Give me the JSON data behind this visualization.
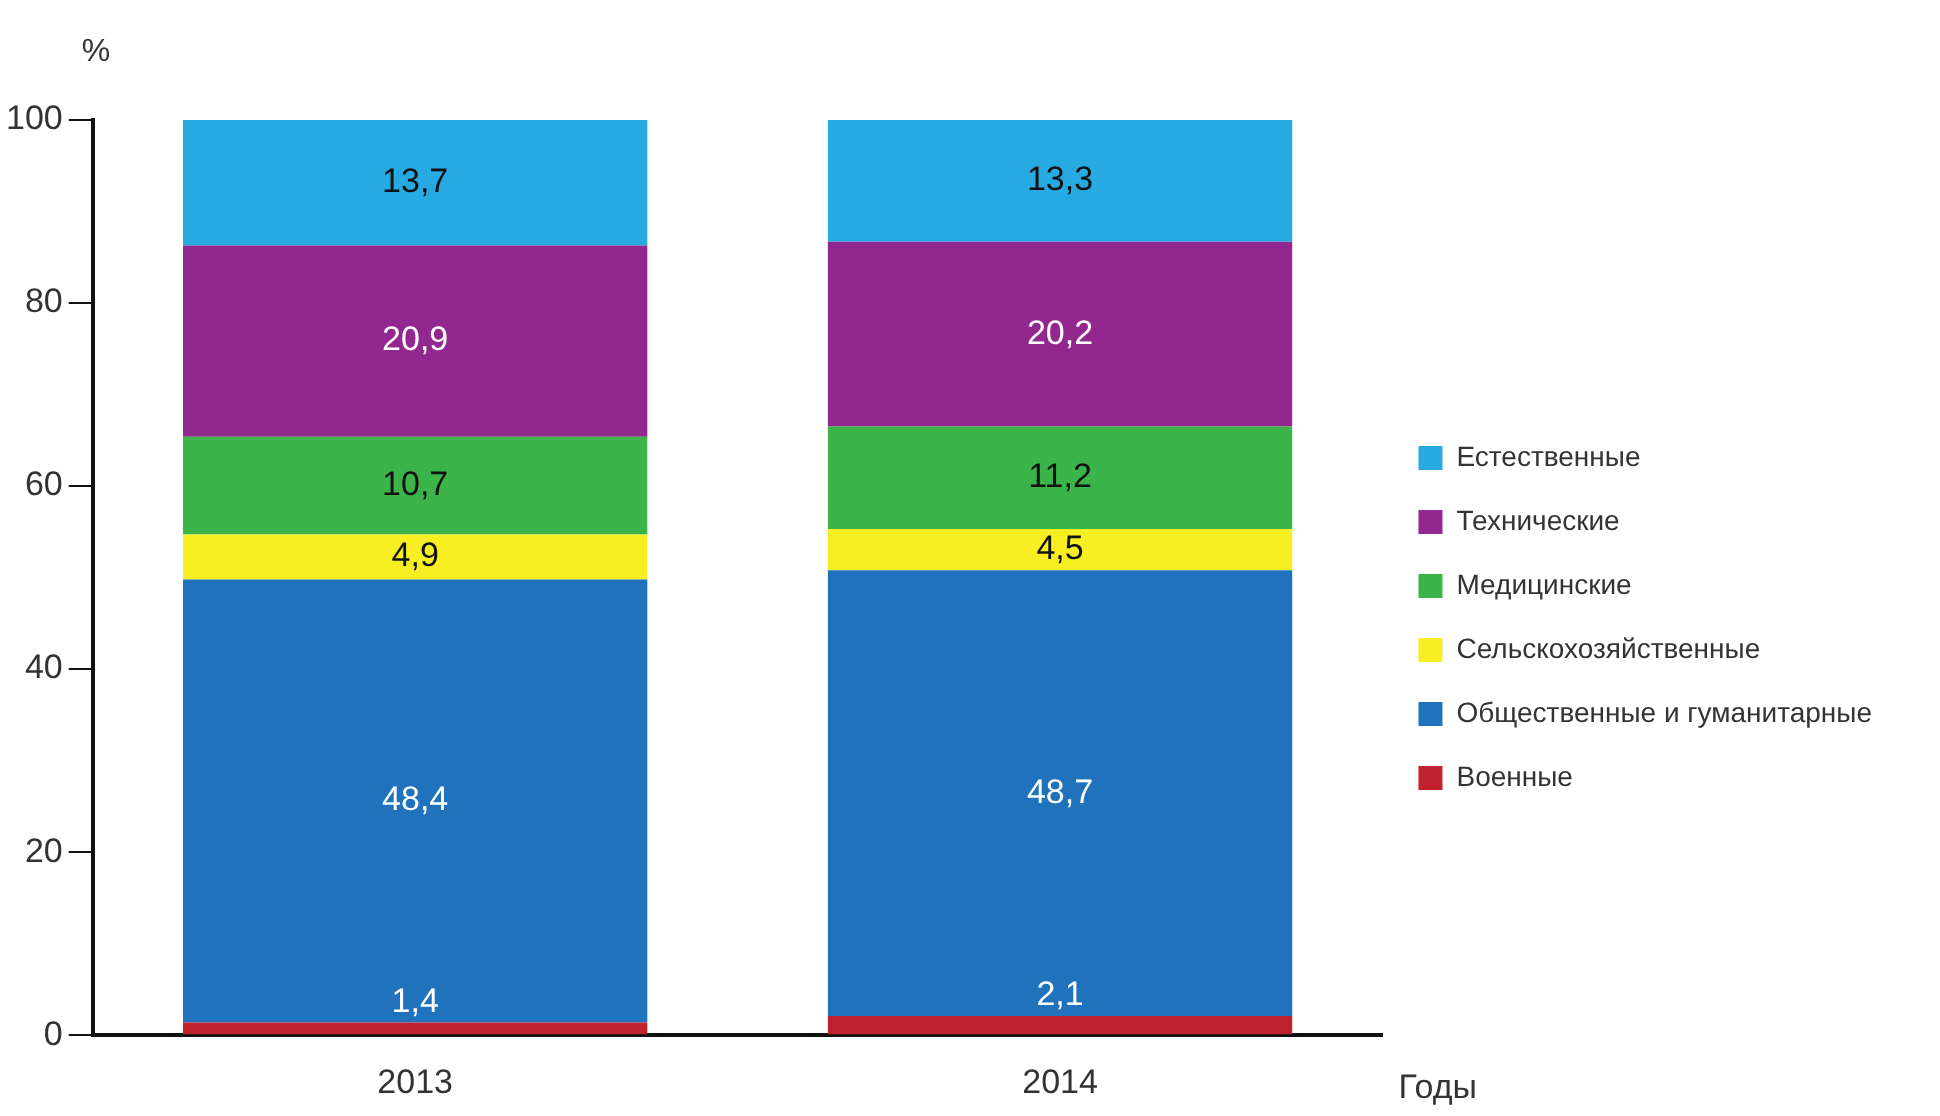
{
  "chart_data": {
    "type": "bar",
    "stacked": true,
    "ylabel": "%",
    "xlabel": "Годы",
    "categories": [
      "2013",
      "2014"
    ],
    "series": [
      {
        "name": "Военные",
        "color": "#c1202e",
        "values": [
          1.4,
          2.1
        ],
        "value_labels": [
          "1,4",
          "2,1"
        ]
      },
      {
        "name": "Общественные и гуманитарные",
        "color": "#1f72bb",
        "values": [
          48.4,
          48.7
        ],
        "value_labels": [
          "48,4",
          "48,7"
        ]
      },
      {
        "name": "Сельскохозяйственные",
        "color": "#f8ef23",
        "values": [
          4.9,
          4.5
        ],
        "value_labels": [
          "4,9",
          "4,5"
        ]
      },
      {
        "name": "Медицинские",
        "color": "#3bb54a",
        "values": [
          10.7,
          11.2
        ],
        "value_labels": [
          "10,7",
          "11,2"
        ]
      },
      {
        "name": "Технические",
        "color": "#92278f",
        "values": [
          20.9,
          20.2
        ],
        "value_labels": [
          "20,9",
          "20,2"
        ]
      },
      {
        "name": "Естественные",
        "color": "#27aae1",
        "values": [
          13.7,
          13.3
        ],
        "value_labels": [
          "13,7",
          "13,3"
        ]
      }
    ],
    "ylim": [
      0,
      100
    ],
    "yticks": [
      0,
      20,
      40,
      60,
      80,
      100
    ],
    "grid": false,
    "legend": "right"
  }
}
